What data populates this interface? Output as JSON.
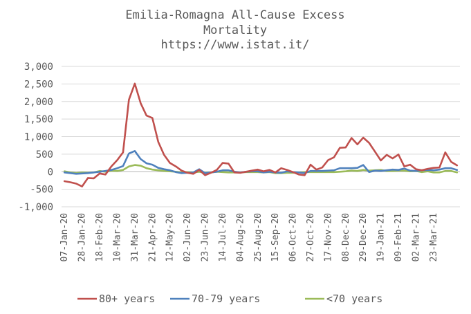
{
  "chart_data": {
    "type": "line",
    "title": "Emilia-Romagna All-Cause Excess Mortality",
    "subtitle": "https://www.istat.it/",
    "xlabel": "",
    "ylabel": "",
    "ylim": [
      -1000,
      3000
    ],
    "yticks": [
      -1000,
      -500,
      0,
      500,
      1000,
      1500,
      2000,
      2500,
      3000
    ],
    "ytick_labels": [
      "-1,000",
      "-500",
      "0",
      "500",
      "1,000",
      "1,500",
      "2,000",
      "2,500",
      "3,000"
    ],
    "grid": true,
    "legend_position": "bottom",
    "x_tick_labels": [
      "07-Jan-20",
      "28-Jan-20",
      "18-Feb-20",
      "10-Mar-20",
      "31-Mar-20",
      "21-Apr-20",
      "12-May-20",
      "02-Jun-20",
      "23-Jun-20",
      "14-Jul-20",
      "04-Aug-20",
      "25-Aug-20",
      "15-Sep-20",
      "06-Oct-20",
      "27-Oct-20",
      "17-Nov-20",
      "08-Dec-20",
      "29-Dec-20",
      "19-Jan-21",
      "09-Feb-21",
      "02-Mar-21",
      "23-Mar-21"
    ],
    "x_tick_every": 3,
    "series": [
      {
        "name": "80+ years",
        "color": "#c0504d",
        "values": [
          -270,
          -300,
          -340,
          -420,
          -180,
          -190,
          -50,
          -80,
          150,
          330,
          550,
          2050,
          2510,
          1950,
          1600,
          1530,
          850,
          480,
          250,
          150,
          30,
          -30,
          -60,
          50,
          -100,
          -30,
          50,
          250,
          230,
          -20,
          -30,
          0,
          30,
          60,
          10,
          50,
          -20,
          100,
          50,
          -10,
          -80,
          -100,
          200,
          60,
          120,
          330,
          410,
          680,
          690,
          960,
          780,
          970,
          820,
          570,
          320,
          480,
          380,
          490,
          150,
          200,
          70,
          40,
          80,
          110,
          120,
          550,
          280,
          180
        ]
      },
      {
        "name": "70-79 years",
        "color": "#4f81bd",
        "values": [
          -20,
          -40,
          -60,
          -50,
          -40,
          -20,
          0,
          20,
          50,
          100,
          160,
          520,
          590,
          360,
          240,
          200,
          110,
          70,
          40,
          -10,
          -40,
          -30,
          -20,
          70,
          -40,
          -20,
          0,
          40,
          40,
          0,
          -20,
          0,
          10,
          10,
          -20,
          0,
          -20,
          -30,
          10,
          -10,
          -20,
          -40,
          20,
          20,
          20,
          30,
          40,
          100,
          100,
          100,
          110,
          190,
          -10,
          30,
          20,
          40,
          60,
          50,
          90,
          30,
          20,
          40,
          50,
          40,
          60,
          100,
          100,
          50
        ]
      },
      {
        "name": "<70 years",
        "color": "#9bbb59",
        "values": [
          10,
          -20,
          -40,
          -20,
          -30,
          -20,
          20,
          0,
          30,
          20,
          50,
          150,
          190,
          170,
          100,
          60,
          40,
          20,
          10,
          0,
          -20,
          -10,
          -20,
          0,
          -30,
          -20,
          0,
          -10,
          -20,
          -20,
          -20,
          -10,
          -10,
          -10,
          -20,
          -10,
          -40,
          -40,
          -30,
          -30,
          -20,
          -10,
          -10,
          -10,
          -10,
          -10,
          -10,
          0,
          10,
          30,
          20,
          50,
          30,
          40,
          50,
          20,
          20,
          30,
          30,
          10,
          20,
          -10,
          10,
          -20,
          -20,
          20,
          20,
          -20
        ]
      }
    ]
  }
}
